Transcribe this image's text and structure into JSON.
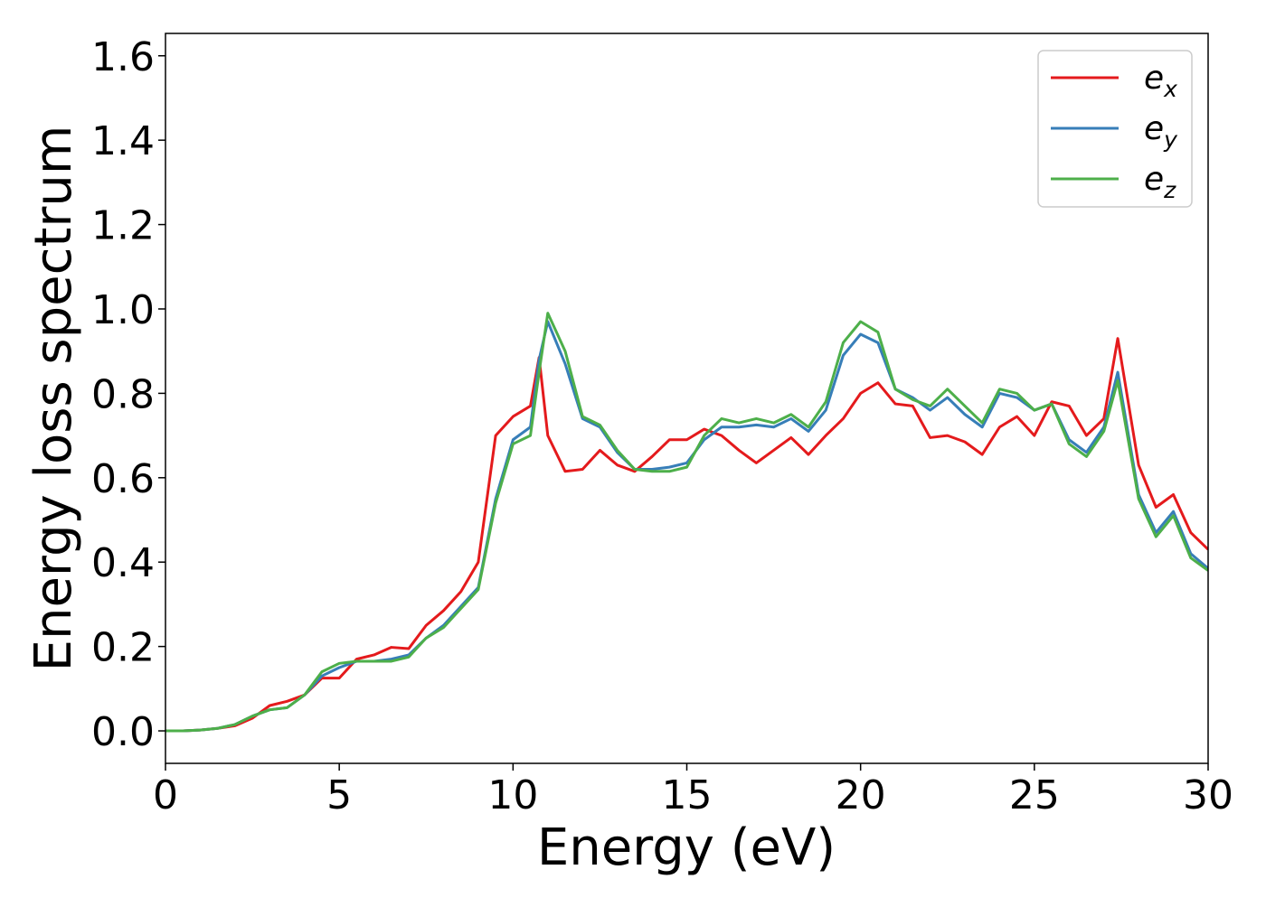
{
  "chart_data": {
    "type": "line",
    "xlabel": "Energy (eV)",
    "ylabel": "Energy loss spectrum",
    "x": [
      0,
      0.5,
      1,
      1.5,
      2,
      2.5,
      3,
      3.5,
      4,
      4.5,
      5,
      5.5,
      6,
      6.5,
      7,
      7.5,
      8,
      8.5,
      9,
      9.5,
      10,
      10.5,
      10.75,
      11,
      11.5,
      12,
      12.5,
      13,
      13.5,
      14,
      14.5,
      15,
      15.5,
      16,
      16.5,
      17,
      17.5,
      18,
      18.5,
      19,
      19.5,
      20,
      20.5,
      21,
      21.5,
      22,
      22.5,
      23,
      23.5,
      24,
      24.5,
      25,
      25.5,
      26,
      26.5,
      27,
      27.4,
      28,
      28.5,
      29,
      29.5,
      30
    ],
    "series": [
      {
        "name": "e_x",
        "color": "#e41a1c",
        "values": [
          0,
          0,
          0.002,
          0.006,
          0.012,
          0.03,
          0.06,
          0.07,
          0.085,
          0.125,
          0.125,
          0.17,
          0.18,
          0.198,
          0.195,
          0.25,
          0.285,
          0.33,
          0.4,
          0.7,
          0.745,
          0.77,
          0.885,
          0.7,
          0.615,
          0.62,
          0.665,
          0.63,
          0.615,
          0.65,
          0.69,
          0.69,
          0.715,
          0.7,
          0.665,
          0.635,
          0.665,
          0.695,
          0.655,
          0.7,
          0.74,
          0.8,
          0.825,
          0.775,
          0.77,
          0.695,
          0.7,
          0.685,
          0.655,
          0.72,
          0.745,
          0.7,
          0.78,
          0.77,
          0.7,
          0.74,
          0.93,
          0.63,
          0.53,
          0.56,
          0.47,
          0.43
        ]
      },
      {
        "name": "e_y",
        "color": "#377eb8",
        "values": [
          0,
          0,
          0.002,
          0.006,
          0.015,
          0.035,
          0.05,
          0.055,
          0.085,
          0.13,
          0.15,
          0.165,
          0.165,
          0.17,
          0.18,
          0.22,
          0.25,
          0.295,
          0.34,
          0.55,
          0.69,
          0.72,
          0.88,
          0.97,
          0.87,
          0.74,
          0.72,
          0.66,
          0.62,
          0.62,
          0.625,
          0.635,
          0.69,
          0.72,
          0.72,
          0.725,
          0.72,
          0.74,
          0.71,
          0.76,
          0.89,
          0.94,
          0.92,
          0.81,
          0.79,
          0.76,
          0.79,
          0.75,
          0.72,
          0.8,
          0.79,
          0.76,
          0.775,
          0.69,
          0.66,
          0.72,
          0.85,
          0.56,
          0.47,
          0.52,
          0.42,
          0.385
        ]
      },
      {
        "name": "e_z",
        "color": "#4daf4a",
        "values": [
          0,
          0,
          0.002,
          0.006,
          0.015,
          0.035,
          0.05,
          0.055,
          0.085,
          0.14,
          0.16,
          0.165,
          0.165,
          0.165,
          0.175,
          0.22,
          0.245,
          0.29,
          0.335,
          0.54,
          0.68,
          0.7,
          0.85,
          0.99,
          0.9,
          0.745,
          0.725,
          0.665,
          0.62,
          0.615,
          0.615,
          0.625,
          0.7,
          0.74,
          0.73,
          0.74,
          0.73,
          0.75,
          0.72,
          0.78,
          0.92,
          0.97,
          0.945,
          0.81,
          0.785,
          0.77,
          0.81,
          0.77,
          0.73,
          0.81,
          0.8,
          0.76,
          0.775,
          0.68,
          0.65,
          0.71,
          0.83,
          0.55,
          0.46,
          0.51,
          0.41,
          0.38
        ]
      }
    ],
    "xlim": [
      0,
      30
    ],
    "xticks": [
      0,
      5,
      10,
      15,
      20,
      25,
      30
    ],
    "ylim": [
      -0.077,
      1.653
    ],
    "yticks": [
      {
        "value": 0,
        "label": "0.0"
      },
      0.2,
      0.4,
      0.6,
      0.8,
      {
        "value": 1,
        "label": "1.0"
      },
      1.2,
      1.4,
      1.6
    ],
    "legend": "upper right",
    "grid": false
  }
}
